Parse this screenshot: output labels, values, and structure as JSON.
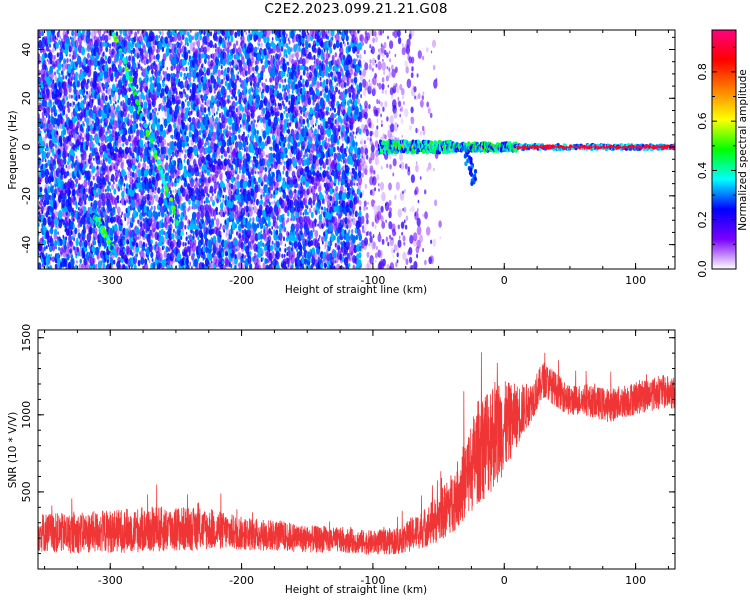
{
  "figure": {
    "title": "C2E2.2023.099.21.21.G08"
  },
  "chart_data": [
    {
      "type": "heatmap",
      "panel": "spectrogram",
      "xlabel": "Height of straight line (km)",
      "ylabel": "Frequency (Hz)",
      "xlim": [
        -355,
        130
      ],
      "ylim": [
        -50,
        48
      ],
      "xticks": [
        -300,
        -200,
        -100,
        0,
        100
      ],
      "yticks": [
        -40,
        -20,
        0,
        20,
        40
      ],
      "colorbar": {
        "label": "Normalized spectral amplitude",
        "range": [
          0.0,
          0.97
        ],
        "ticks": [
          0.0,
          0.2,
          0.4,
          0.6,
          0.8
        ],
        "colormap": [
          "#ffffff",
          "#7a00ff",
          "#0000ff",
          "#00ffff",
          "#00ff00",
          "#ffff00",
          "#ff8000",
          "#ff0000",
          "#ff0080"
        ]
      },
      "features": {
        "noise_region_x": [
          -355,
          -80
        ],
        "noise_typical_amplitude": 0.25,
        "line_start_x": -95,
        "line_frequency": 0,
        "line_peak_amplitude": 0.9,
        "streak_1": {
          "x": [
            -312,
            -297
          ],
          "y": [
            -28,
            -43
          ]
        },
        "streak_2": {
          "x": [
            -297,
            -246
          ],
          "y": [
            47,
            -35
          ]
        },
        "tail": {
          "x": [
            -30,
            -22
          ],
          "y": [
            0,
            -15
          ]
        }
      }
    },
    {
      "type": "line",
      "panel": "snr",
      "xlabel": "Height of straight line (km)",
      "ylabel": "SNR (10 * V/V)",
      "xlim": [
        -355,
        130
      ],
      "ylim": [
        0,
        1550
      ],
      "xticks": [
        -300,
        -200,
        -100,
        0,
        100
      ],
      "yticks": [
        500,
        1000,
        1500
      ],
      "color": "#ef3535",
      "series": [
        {
          "x": [
            -355,
            -330,
            -300,
            -270,
            -250,
            -220,
            -200,
            -170,
            -150,
            -120,
            -100,
            -80,
            -60,
            -50,
            -40,
            -30,
            -20,
            -10,
            0,
            10,
            20,
            30,
            40,
            50,
            60,
            80,
            100,
            120,
            130
          ],
          "y": [
            240,
            230,
            245,
            255,
            260,
            255,
            230,
            215,
            195,
            185,
            170,
            185,
            270,
            330,
            430,
            570,
            760,
            870,
            920,
            1000,
            1080,
            1230,
            1160,
            1090,
            1100,
            1060,
            1110,
            1150,
            1140
          ],
          "spread": [
            130,
            130,
            140,
            150,
            150,
            130,
            110,
            100,
            90,
            80,
            80,
            90,
            130,
            160,
            200,
            260,
            340,
            380,
            300,
            200,
            130,
            120,
            110,
            100,
            100,
            110,
            110,
            110,
            110
          ]
        }
      ]
    }
  ]
}
